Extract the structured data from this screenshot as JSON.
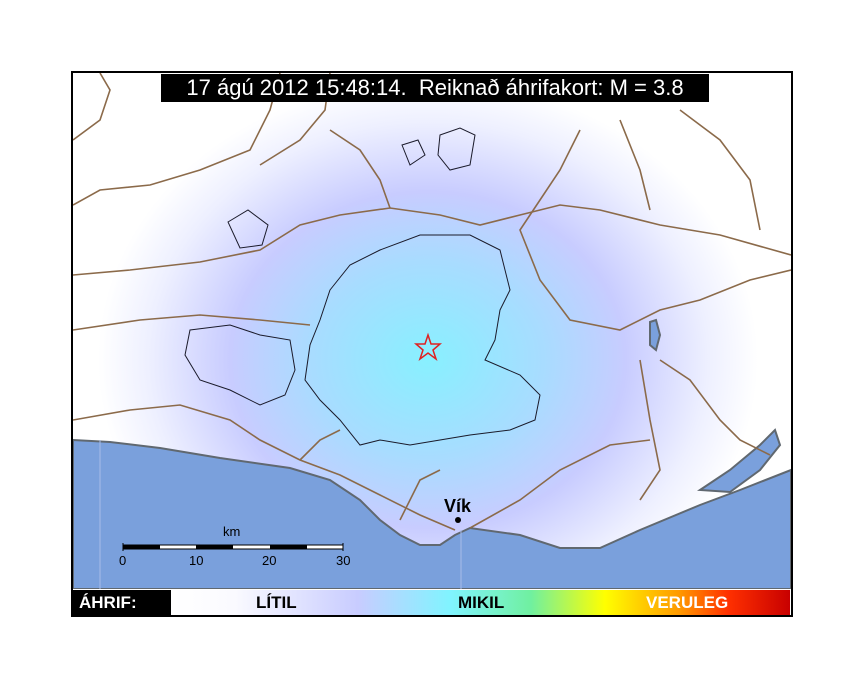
{
  "title": "17 ágú 2012 15:48:14.  Reiknað áhrifakort: M = 3.8",
  "place": {
    "name": "Vík"
  },
  "scale_bar": {
    "unit": "km",
    "ticks": [
      "0",
      "10",
      "20",
      "30"
    ]
  },
  "legend": {
    "label": "ÁHRIF:",
    "levels": [
      "LÍTIL",
      "MIKIL",
      "VERULEG"
    ]
  },
  "epicenter": {
    "icon": "star-icon",
    "color": "#e02020"
  },
  "colors": {
    "sea": "#7aa0dc",
    "roads": "#8b6a4a",
    "intensity_low": "#c8ccff",
    "intensity_center": "#80f0ff"
  }
}
